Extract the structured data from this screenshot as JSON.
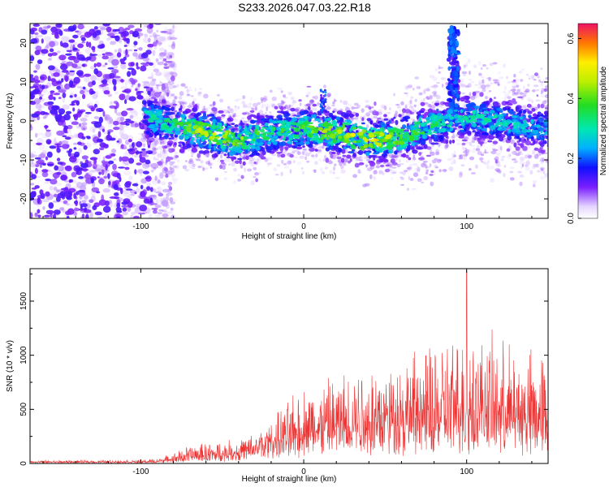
{
  "title": "S233.2026.047.03.22.R18",
  "chart_data": [
    {
      "type": "heatmap",
      "xlabel": "Height of straight line (km)",
      "ylabel": "Frequency (Hz)",
      "xlim": [
        -168,
        150
      ],
      "ylim": [
        -25,
        25
      ],
      "xticks": [
        -100,
        0,
        100
      ],
      "yticks": [
        -20,
        -10,
        0,
        10,
        20
      ],
      "colorbar": {
        "label": "Normalized spectral amplitude",
        "range": [
          0,
          0.65
        ],
        "ticks": [
          0.0,
          0.2,
          0.4,
          0.6
        ],
        "tick_labels": [
          "0.0",
          "0.2",
          "0.4",
          "0.6"
        ]
      },
      "ridge": {
        "x": [
          -98,
          -80,
          -60,
          -40,
          -20,
          0,
          20,
          40,
          60,
          80,
          100,
          120,
          148
        ],
        "freq_center": [
          1,
          -1,
          -3,
          -5,
          -3,
          -2,
          -3,
          -5,
          -4,
          -1,
          1,
          0,
          -2
        ],
        "peak_amplitude": [
          0.25,
          0.3,
          0.45,
          0.4,
          0.3,
          0.35,
          0.45,
          0.5,
          0.4,
          0.3,
          0.25,
          0.25,
          0.2
        ]
      },
      "noise_region_x": [
        -168,
        -85
      ],
      "feature_x": [
        92,
        12
      ]
    },
    {
      "type": "line",
      "xlabel": "Height of straight line (km)",
      "ylabel": "SNR (10 * v/v)",
      "xlim": [
        -168,
        150
      ],
      "ylim": [
        0,
        1800
      ],
      "xticks": [
        -100,
        0,
        100
      ],
      "yticks": [
        0,
        500,
        1000,
        1500
      ],
      "color": "#ee3333",
      "envelope": {
        "x": [
          -168,
          -100,
          -90,
          -80,
          -70,
          -60,
          -50,
          -40,
          -30,
          -20,
          -10,
          0,
          10,
          20,
          30,
          40,
          50,
          60,
          70,
          80,
          90,
          100,
          110,
          120,
          130,
          140,
          150
        ],
        "base": [
          15,
          15,
          20,
          40,
          60,
          70,
          80,
          100,
          150,
          200,
          250,
          300,
          320,
          340,
          360,
          380,
          400,
          400,
          400,
          400,
          420,
          450,
          450,
          420,
          400,
          380,
          400
        ],
        "peak": [
          30,
          35,
          50,
          100,
          180,
          200,
          220,
          240,
          300,
          420,
          600,
          750,
          800,
          850,
          950,
          1000,
          1000,
          1050,
          1100,
          1150,
          1250,
          1300,
          1250,
          1200,
          1150,
          1100,
          1100
        ]
      },
      "max_point": {
        "x": 100,
        "y": 1780
      }
    }
  ]
}
